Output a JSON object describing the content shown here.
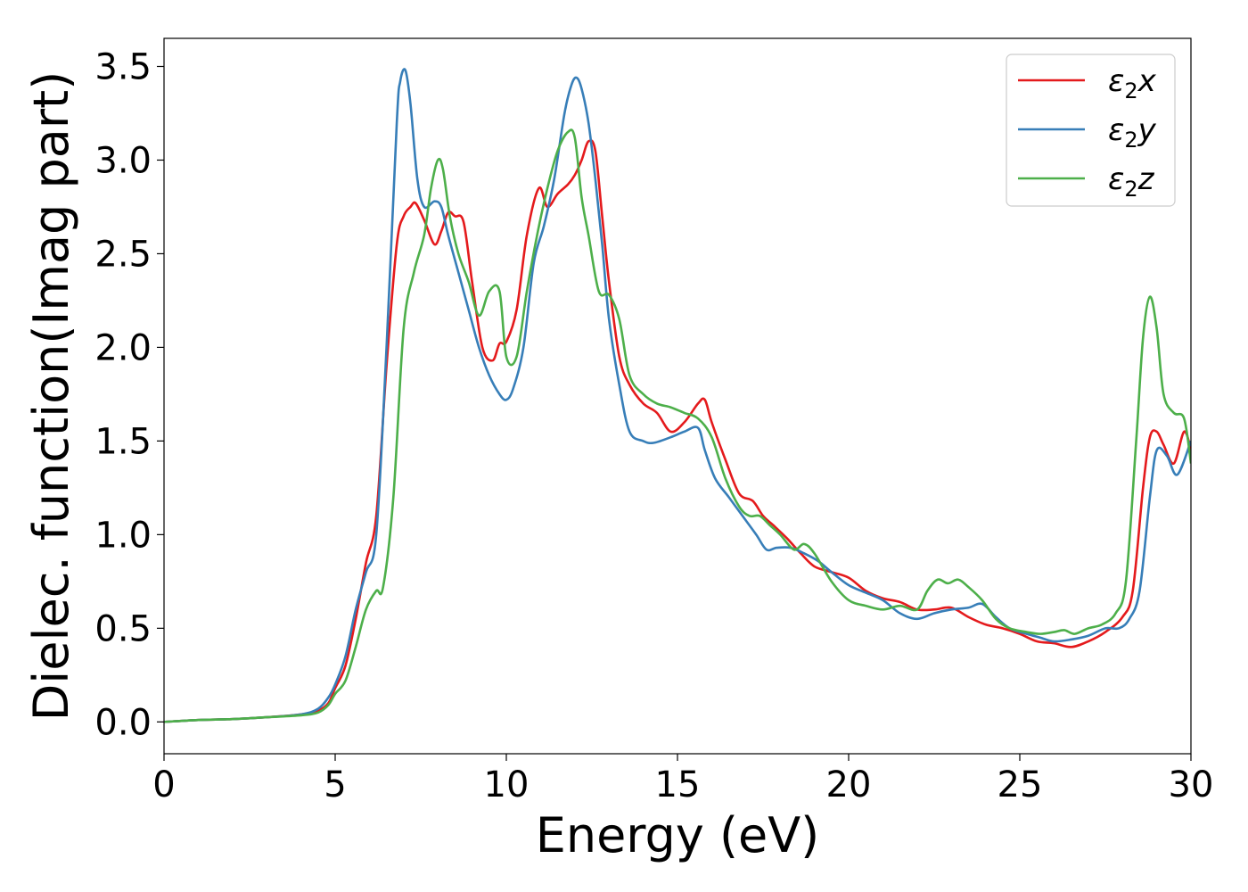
{
  "chart_data": {
    "type": "line",
    "xlabel": "Energy (eV)",
    "ylabel": "Dielec. function(Imag part)",
    "xlim": [
      0,
      30
    ],
    "ylim": [
      -0.17,
      3.65
    ],
    "xticks": [
      0,
      5,
      10,
      15,
      20,
      25,
      30
    ],
    "xtick_labels": [
      "0",
      "5",
      "10",
      "15",
      "20",
      "25",
      "30"
    ],
    "yticks": [
      0.0,
      0.5,
      1.0,
      1.5,
      2.0,
      2.5,
      3.0,
      3.5
    ],
    "ytick_labels": [
      "0.0",
      "0.5",
      "1.0",
      "1.5",
      "2.0",
      "2.5",
      "3.0",
      "3.5"
    ],
    "grid": false,
    "legend_position": "top-right",
    "series": [
      {
        "name": "ε2x",
        "label_base": "ε",
        "label_sub": "2",
        "label_suffix": "x",
        "color": "#e41a1c",
        "x": [
          0,
          1,
          2,
          3,
          4,
          4.5,
          4.8,
          5.0,
          5.3,
          5.6,
          5.9,
          6.2,
          6.5,
          6.8,
          7.0,
          7.2,
          7.35,
          7.6,
          7.9,
          8.1,
          8.3,
          8.5,
          8.75,
          9.0,
          9.3,
          9.6,
          9.8,
          10.0,
          10.3,
          10.6,
          10.95,
          11.2,
          11.5,
          11.8,
          12.0,
          12.2,
          12.4,
          12.6,
          12.8,
          13.0,
          13.3,
          13.6,
          14.0,
          14.4,
          14.8,
          15.2,
          15.6,
          15.8,
          16.0,
          16.4,
          16.8,
          17.2,
          17.5,
          17.8,
          18.2,
          18.6,
          19.0,
          19.5,
          20.0,
          20.5,
          21.0,
          21.5,
          22.0,
          22.5,
          23.0,
          23.5,
          24.0,
          24.5,
          25.0,
          25.5,
          26.0,
          26.5,
          27.0,
          27.5,
          28.0,
          28.3,
          28.6,
          28.8,
          29.0,
          29.2,
          29.5,
          29.8,
          30.0
        ],
        "y": [
          0.0,
          0.01,
          0.015,
          0.025,
          0.04,
          0.06,
          0.1,
          0.18,
          0.3,
          0.55,
          0.85,
          1.1,
          1.9,
          2.55,
          2.7,
          2.75,
          2.77,
          2.68,
          2.55,
          2.62,
          2.72,
          2.7,
          2.67,
          2.35,
          2.0,
          1.93,
          2.02,
          2.03,
          2.2,
          2.6,
          2.85,
          2.75,
          2.82,
          2.87,
          2.92,
          3.0,
          3.1,
          3.05,
          2.7,
          2.35,
          1.95,
          1.8,
          1.7,
          1.65,
          1.55,
          1.6,
          1.7,
          1.72,
          1.6,
          1.4,
          1.22,
          1.18,
          1.1,
          1.05,
          0.98,
          0.9,
          0.83,
          0.8,
          0.77,
          0.7,
          0.66,
          0.64,
          0.6,
          0.6,
          0.61,
          0.56,
          0.52,
          0.5,
          0.47,
          0.43,
          0.42,
          0.4,
          0.43,
          0.48,
          0.56,
          0.7,
          1.25,
          1.52,
          1.55,
          1.48,
          1.38,
          1.55,
          1.45
        ]
      },
      {
        "name": "ε2y",
        "label_base": "ε",
        "label_sub": "2",
        "label_suffix": "y",
        "color": "#377eb8",
        "x": [
          0,
          1,
          2,
          3,
          4,
          4.5,
          4.8,
          5.0,
          5.3,
          5.6,
          5.9,
          6.2,
          6.5,
          6.8,
          6.9,
          7.05,
          7.2,
          7.4,
          7.6,
          7.9,
          8.1,
          8.3,
          8.6,
          8.9,
          9.2,
          9.5,
          9.8,
          10.0,
          10.2,
          10.5,
          10.8,
          11.1,
          11.4,
          11.7,
          11.9,
          12.05,
          12.2,
          12.4,
          12.6,
          12.8,
          13.0,
          13.3,
          13.6,
          14.0,
          14.3,
          14.8,
          15.2,
          15.6,
          15.8,
          16.1,
          16.5,
          16.9,
          17.3,
          17.6,
          17.9,
          18.3,
          18.7,
          19.1,
          19.5,
          20.0,
          20.5,
          21.0,
          21.5,
          22.0,
          22.5,
          23.0,
          23.5,
          23.9,
          24.3,
          24.7,
          25.2,
          25.6,
          26.0,
          26.5,
          27.0,
          27.5,
          27.9,
          28.2,
          28.5,
          28.8,
          29.0,
          29.3,
          29.6,
          30.0
        ],
        "y": [
          0.0,
          0.01,
          0.015,
          0.025,
          0.04,
          0.07,
          0.13,
          0.2,
          0.35,
          0.6,
          0.8,
          1.0,
          2.0,
          3.2,
          3.42,
          3.48,
          3.3,
          2.9,
          2.75,
          2.78,
          2.75,
          2.6,
          2.4,
          2.2,
          2.0,
          1.85,
          1.75,
          1.72,
          1.78,
          2.0,
          2.45,
          2.65,
          2.9,
          3.25,
          3.4,
          3.44,
          3.38,
          3.2,
          2.9,
          2.55,
          2.15,
          1.8,
          1.55,
          1.5,
          1.49,
          1.52,
          1.55,
          1.57,
          1.45,
          1.3,
          1.2,
          1.1,
          1.0,
          0.92,
          0.93,
          0.93,
          0.9,
          0.86,
          0.8,
          0.73,
          0.69,
          0.65,
          0.58,
          0.55,
          0.58,
          0.6,
          0.61,
          0.63,
          0.56,
          0.5,
          0.47,
          0.45,
          0.43,
          0.44,
          0.46,
          0.5,
          0.5,
          0.55,
          0.7,
          1.2,
          1.45,
          1.42,
          1.32,
          1.5
        ]
      },
      {
        "name": "ε2z",
        "label_base": "ε",
        "label_sub": "2",
        "label_suffix": "z",
        "color": "#4daf4a",
        "x": [
          0,
          1,
          2,
          3,
          4,
          4.5,
          4.8,
          5.0,
          5.3,
          5.6,
          5.9,
          6.2,
          6.4,
          6.7,
          7.0,
          7.3,
          7.6,
          7.8,
          8.0,
          8.15,
          8.35,
          8.6,
          8.9,
          9.2,
          9.5,
          9.8,
          10.0,
          10.3,
          10.6,
          10.9,
          11.2,
          11.5,
          11.8,
          12.0,
          12.2,
          12.4,
          12.7,
          13.0,
          13.3,
          13.6,
          14.0,
          14.4,
          14.8,
          15.2,
          15.6,
          16.0,
          16.4,
          16.8,
          17.1,
          17.4,
          17.7,
          18.0,
          18.4,
          18.7,
          19.0,
          19.5,
          20.0,
          20.5,
          21.0,
          21.5,
          22.0,
          22.3,
          22.6,
          22.9,
          23.2,
          23.5,
          23.9,
          24.3,
          24.7,
          25.2,
          25.6,
          26.0,
          26.3,
          26.6,
          27.0,
          27.4,
          27.8,
          28.1,
          28.4,
          28.6,
          28.8,
          29.0,
          29.2,
          29.5,
          29.8,
          30.0
        ],
        "y": [
          0.0,
          0.01,
          0.015,
          0.025,
          0.035,
          0.05,
          0.09,
          0.15,
          0.22,
          0.4,
          0.6,
          0.7,
          0.72,
          1.2,
          2.1,
          2.4,
          2.6,
          2.85,
          3.0,
          2.95,
          2.7,
          2.5,
          2.35,
          2.17,
          2.3,
          2.3,
          1.95,
          1.95,
          2.3,
          2.6,
          2.85,
          3.05,
          3.15,
          3.12,
          2.8,
          2.6,
          2.3,
          2.28,
          2.15,
          1.85,
          1.75,
          1.7,
          1.68,
          1.65,
          1.62,
          1.52,
          1.3,
          1.15,
          1.1,
          1.1,
          1.05,
          1.0,
          0.92,
          0.95,
          0.9,
          0.75,
          0.65,
          0.62,
          0.6,
          0.62,
          0.6,
          0.7,
          0.76,
          0.74,
          0.76,
          0.72,
          0.65,
          0.55,
          0.5,
          0.48,
          0.47,
          0.48,
          0.49,
          0.47,
          0.5,
          0.52,
          0.58,
          0.75,
          1.5,
          2.05,
          2.27,
          2.1,
          1.75,
          1.65,
          1.62,
          1.38
        ]
      }
    ]
  }
}
